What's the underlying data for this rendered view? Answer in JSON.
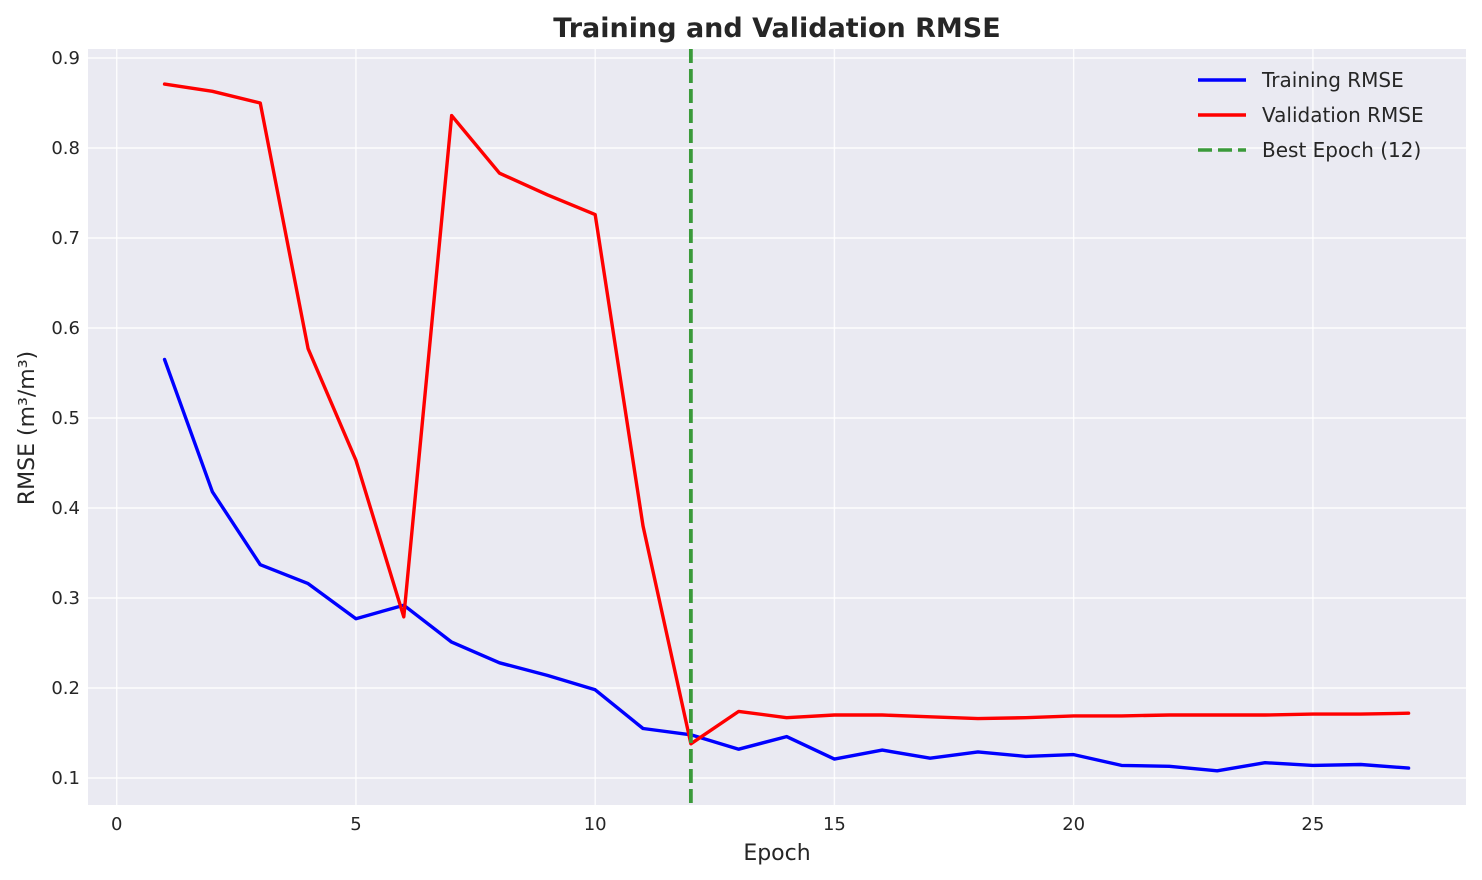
{
  "chart_data": {
    "type": "line",
    "title": "Training and Validation RMSE",
    "xlabel": "Epoch",
    "ylabel": "RMSE (m³/m³)",
    "xlim": [
      -0.6,
      28.2
    ],
    "ylim": [
      0.07,
      0.91
    ],
    "xticks": [
      0,
      5,
      10,
      15,
      20,
      25
    ],
    "yticks": [
      0.1,
      0.2,
      0.3,
      0.4,
      0.5,
      0.6,
      0.7,
      0.8,
      0.9
    ],
    "grid": true,
    "legend_position": "top-right",
    "x": [
      1,
      2,
      3,
      4,
      5,
      6,
      7,
      8,
      9,
      10,
      11,
      12,
      13,
      14,
      15,
      16,
      17,
      18,
      19,
      20,
      21,
      22,
      23,
      24,
      25,
      26,
      27
    ],
    "series": [
      {
        "name": "Training RMSE",
        "color": "#0000ff",
        "style": "solid",
        "values": [
          0.565,
          0.418,
          0.337,
          0.316,
          0.277,
          0.292,
          0.251,
          0.228,
          0.214,
          0.198,
          0.155,
          0.148,
          0.132,
          0.146,
          0.121,
          0.131,
          0.122,
          0.129,
          0.124,
          0.126,
          0.114,
          0.113,
          0.108,
          0.117,
          0.114,
          0.115,
          0.111
        ]
      },
      {
        "name": "Validation RMSE",
        "color": "#ff0000",
        "style": "solid",
        "values": [
          0.871,
          0.863,
          0.85,
          0.577,
          0.453,
          0.279,
          0.836,
          0.772,
          0.748,
          0.726,
          0.38,
          0.138,
          0.174,
          0.167,
          0.17,
          0.17,
          0.168,
          0.166,
          0.167,
          0.169,
          0.169,
          0.17,
          0.17,
          0.17,
          0.171,
          0.171,
          0.172
        ]
      }
    ],
    "vlines": [
      {
        "name": "Best Epoch (12)",
        "x": 12,
        "color": "#3a9a3a",
        "style": "dashed"
      }
    ],
    "colors": {
      "plot_background": "#eaeaf2",
      "text": "#262626"
    }
  }
}
